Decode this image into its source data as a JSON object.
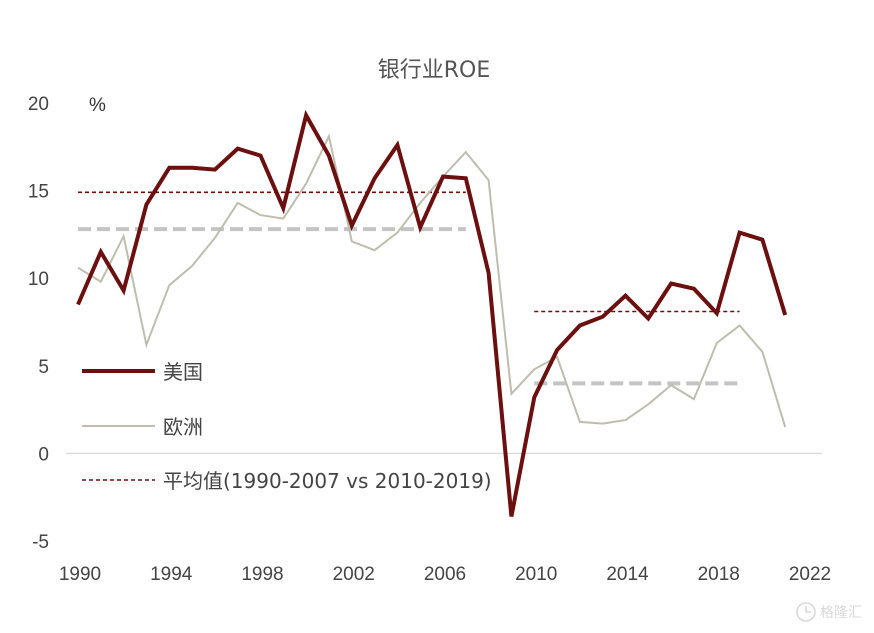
{
  "chart_data": {
    "type": "line",
    "title": "银行业ROE",
    "unit_label": "%",
    "xlim": [
      1990,
      2022
    ],
    "ylim": [
      -5,
      20
    ],
    "x_ticks": [
      1990,
      1994,
      1998,
      2002,
      2006,
      2010,
      2014,
      2018,
      2022
    ],
    "y_ticks": [
      -5,
      0,
      5,
      10,
      15,
      20
    ],
    "grid": false,
    "zero_line": true,
    "legend_position": "left-lower",
    "series": [
      {
        "name": "美国",
        "color": "#6b0f0f",
        "style": "solid-thick",
        "x": [
          1990,
          1991,
          1992,
          1993,
          1994,
          1995,
          1996,
          1997,
          1998,
          1999,
          2000,
          2001,
          2002,
          2003,
          2004,
          2005,
          2006,
          2007,
          2008,
          2009,
          2010,
          2011,
          2012,
          2013,
          2014,
          2015,
          2016,
          2017,
          2018,
          2019,
          2020,
          2021
        ],
        "values": [
          8.5,
          11.5,
          9.3,
          14.2,
          16.3,
          16.3,
          16.2,
          17.4,
          17.0,
          14.0,
          19.3,
          17.0,
          13.0,
          15.7,
          17.6,
          12.9,
          15.8,
          15.7,
          10.3,
          -3.6,
          3.2,
          5.9,
          7.3,
          7.8,
          9.0,
          7.7,
          9.7,
          9.4,
          8.0,
          12.6,
          12.2,
          7.9
        ]
      },
      {
        "name": "欧洲",
        "color": "#bfbdae",
        "style": "solid-thin",
        "x": [
          1990,
          1991,
          1992,
          1993,
          1994,
          1995,
          1996,
          1997,
          1998,
          1999,
          2000,
          2001,
          2002,
          2003,
          2004,
          2005,
          2006,
          2007,
          2008,
          2009,
          2010,
          2011,
          2012,
          2013,
          2014,
          2015,
          2016,
          2017,
          2018,
          2019,
          2020,
          2021
        ],
        "values": [
          10.6,
          9.8,
          12.4,
          6.2,
          9.6,
          10.7,
          12.3,
          14.3,
          13.6,
          13.4,
          15.4,
          18.1,
          12.1,
          11.6,
          12.6,
          14.3,
          15.8,
          17.2,
          15.6,
          3.4,
          4.8,
          5.5,
          1.8,
          1.7,
          1.9,
          2.8,
          3.9,
          3.1,
          6.3,
          7.3,
          5.8,
          1.5
        ]
      }
    ],
    "averages": {
      "name": "平均值(1990-2007 vs 2010-2019)",
      "us_color": "#6b0f0f",
      "eu_color": "#c4c4c4",
      "segments": [
        {
          "series": "美国",
          "x": [
            1990,
            2007
          ],
          "value": 14.9
        },
        {
          "series": "欧洲",
          "x": [
            1990,
            2007
          ],
          "value": 12.8
        },
        {
          "series": "美国",
          "x": [
            2010,
            2019
          ],
          "value": 8.1
        },
        {
          "series": "欧洲",
          "x": [
            2010,
            2019
          ],
          "value": 4.0
        }
      ]
    }
  },
  "legend": {
    "us": "美国",
    "eu": "欧洲",
    "avg": "平均值(1990-2007 vs 2010-2019)"
  },
  "watermark": {
    "text": "格隆汇",
    "icon": "gelonghui-logo-icon"
  }
}
